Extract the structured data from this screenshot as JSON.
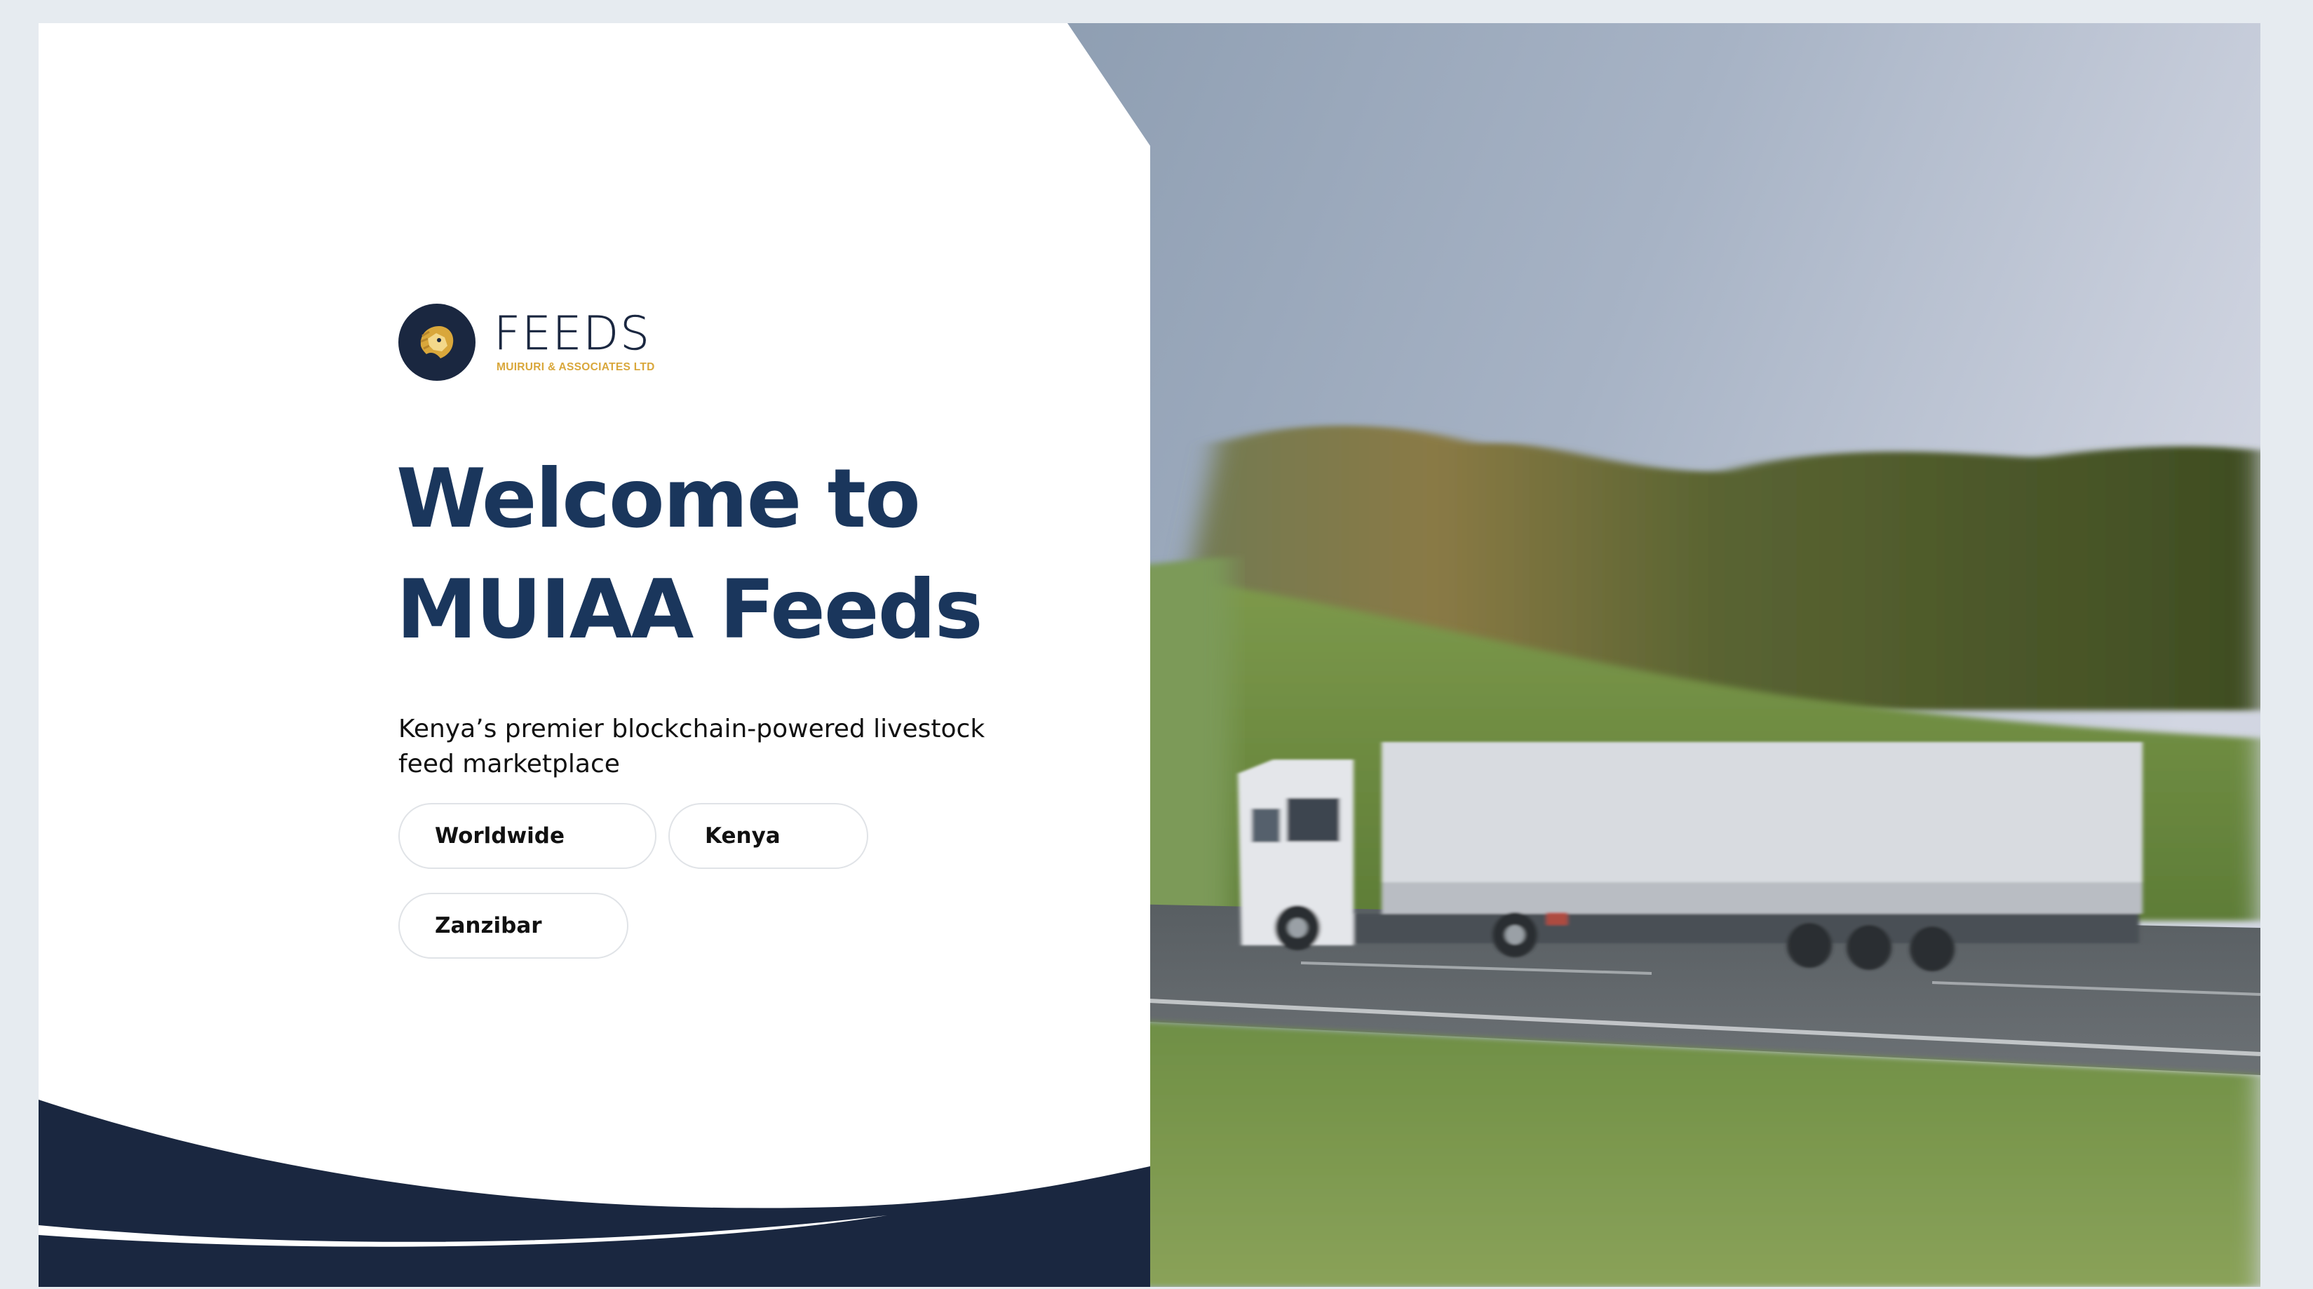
{
  "logo": {
    "word": "FEEDS",
    "subtitle": "MUIRURI & ASSOCIATES LTD"
  },
  "hero": {
    "title": "Welcome to\nMUIAA Feeds",
    "subtitle": "Kenya’s premier blockchain-powered livestock feed marketplace"
  },
  "locations": [
    {
      "label": "Worldwide"
    },
    {
      "label": "Kenya"
    },
    {
      "label": "Zanzibar"
    }
  ],
  "colors": {
    "primary": "#1a365c",
    "navy": "#1a2740",
    "gold": "#d9a73b",
    "page_bg": "#e6ebf0"
  }
}
